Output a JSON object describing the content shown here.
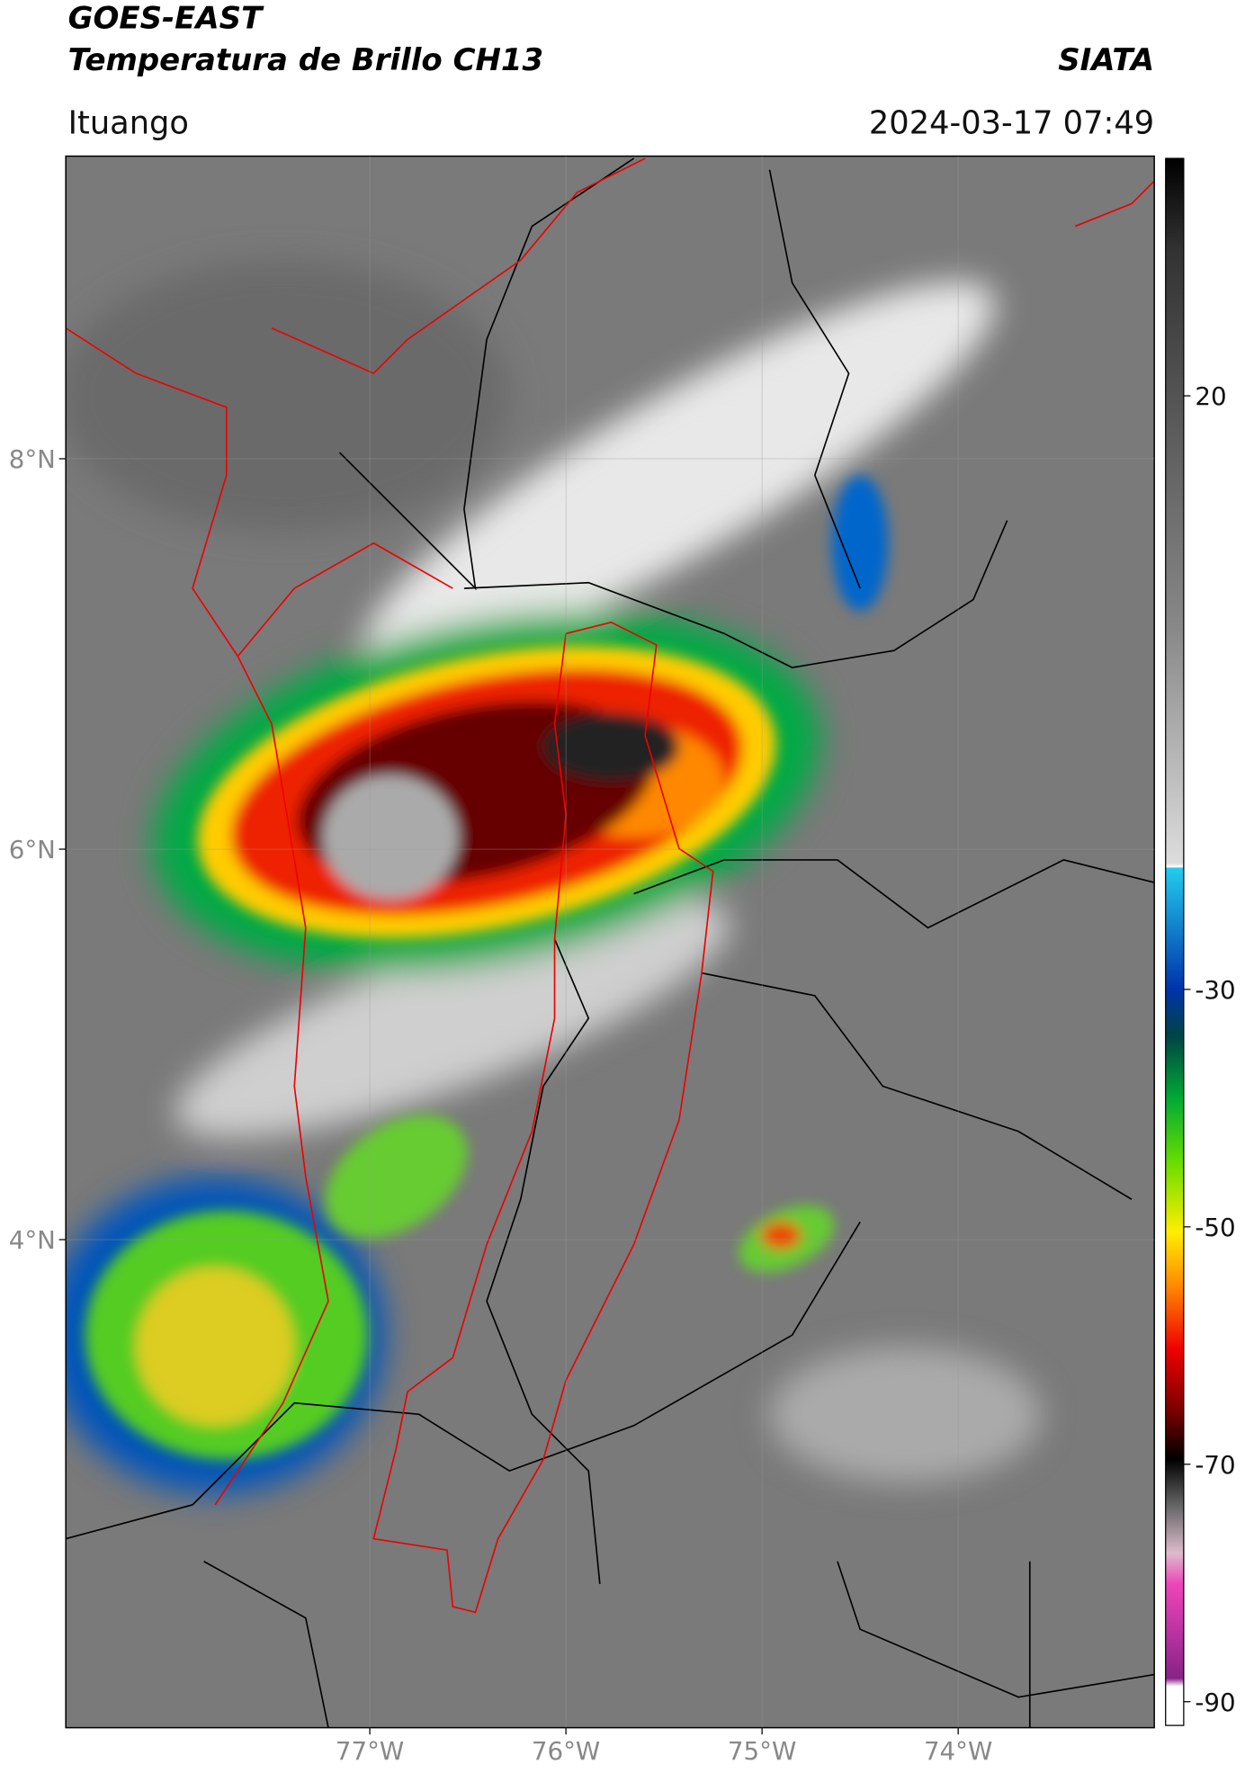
{
  "chart_data": {
    "type": "map",
    "title": "GOES-EAST",
    "subtitle": "Temperatura de Brillo CH13",
    "source": "SIATA",
    "location": "Ituango",
    "datetime": "2024-03-17 07:49",
    "xlim": [
      -78.55,
      -73.0
    ],
    "ylim": [
      1.5,
      9.55
    ],
    "xticks": [
      {
        "value": -77,
        "label": "77°W"
      },
      {
        "value": -76,
        "label": "76°W"
      },
      {
        "value": -75,
        "label": "75°W"
      },
      {
        "value": -74,
        "label": "74°W"
      }
    ],
    "yticks": [
      {
        "value": 8,
        "label": "8°N"
      },
      {
        "value": 6,
        "label": "6°N"
      },
      {
        "value": 4,
        "label": "4°N"
      }
    ],
    "grid": true,
    "colorbar": {
      "lim": [
        -92,
        40
      ],
      "ticks": [
        20,
        -30,
        -50,
        -70,
        -90
      ]
    }
  }
}
